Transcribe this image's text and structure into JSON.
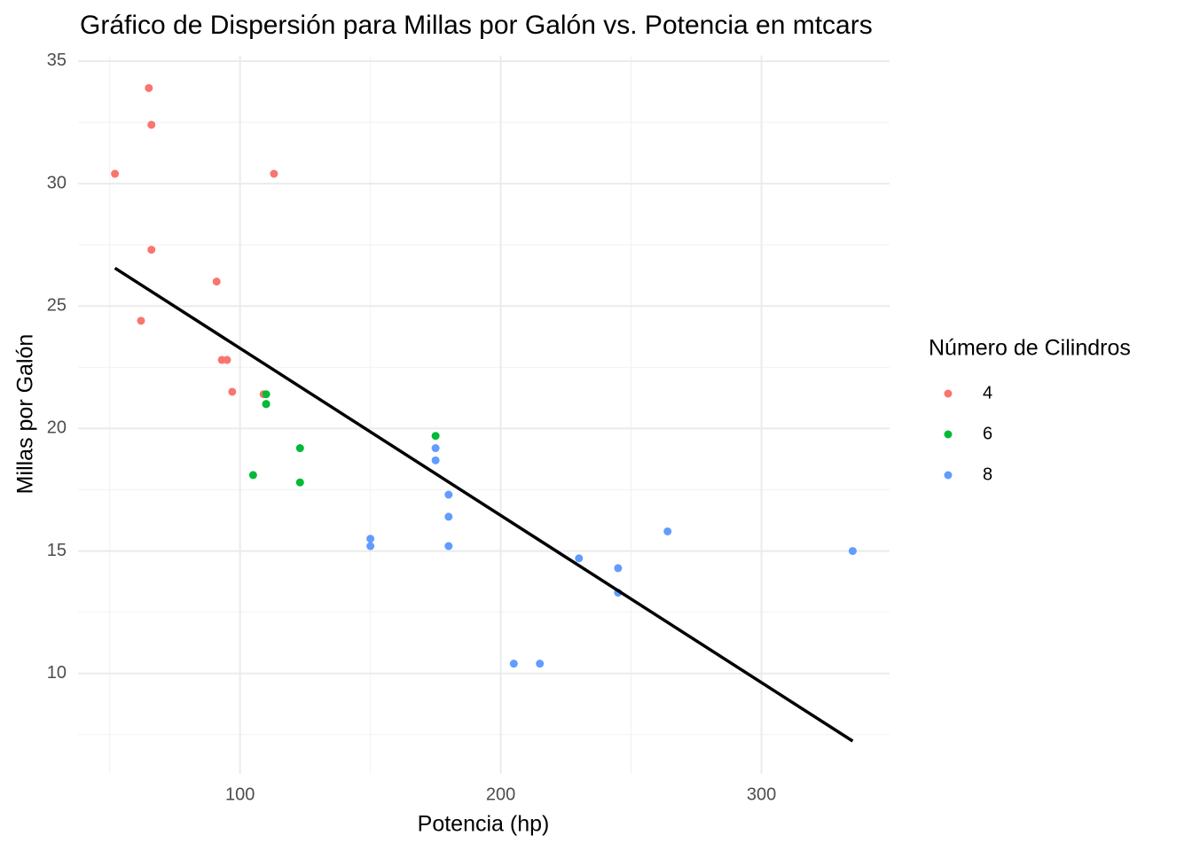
{
  "chart_data": {
    "type": "scatter",
    "title": "Gráfico de Dispersión para Millas por Galón vs. Potencia en mtcars",
    "x_label": "Potencia (hp)",
    "y_label": "Millas por Galón",
    "legend_title": "Número de Cilindros",
    "legend": "right",
    "grid": true,
    "xlim": [
      37.85,
      349.15
    ],
    "ylim": [
      5.9,
      35.23
    ],
    "xticks": [
      100,
      200,
      300
    ],
    "yticks": [
      10,
      15,
      20,
      25,
      30,
      35
    ],
    "xminor": [
      50,
      150,
      250
    ],
    "yminor": [
      7.5,
      12.5,
      17.5,
      22.5,
      27.5,
      32.5
    ],
    "series": [
      {
        "name": "4",
        "color": "#F8766D",
        "x": [
          93,
          62,
          95,
          66,
          52,
          65,
          97,
          66,
          91,
          113,
          109
        ],
        "values": [
          22.8,
          24.4,
          22.8,
          32.4,
          30.4,
          33.9,
          21.5,
          27.3,
          26.0,
          30.4,
          21.4
        ]
      },
      {
        "name": "6",
        "color": "#00BA38",
        "x": [
          110,
          110,
          110,
          105,
          123,
          123,
          175
        ],
        "values": [
          21.0,
          21.0,
          21.4,
          18.1,
          19.2,
          17.8,
          19.7
        ]
      },
      {
        "name": "8",
        "color": "#619CFF",
        "x": [
          175,
          245,
          180,
          180,
          180,
          205,
          215,
          230,
          150,
          150,
          245,
          175,
          264,
          335
        ],
        "values": [
          18.7,
          14.3,
          16.4,
          17.3,
          15.2,
          10.4,
          10.4,
          14.7,
          15.5,
          15.2,
          13.3,
          19.2,
          15.8,
          15.0
        ]
      }
    ],
    "trend": {
      "color": "#000000",
      "x": [
        52,
        335
      ],
      "values": [
        26.55,
        7.24
      ]
    }
  }
}
